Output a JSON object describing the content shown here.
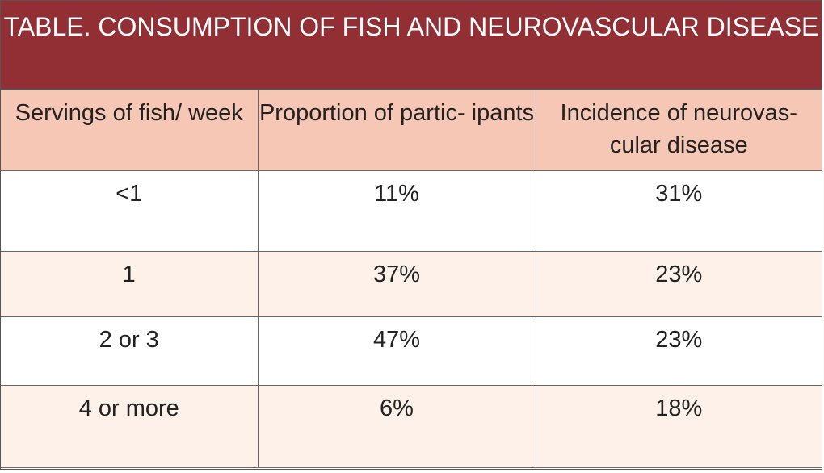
{
  "title": "TABLE. CONSUMPTION OF FISH AND NEUROVASCULAR DISEASE",
  "columns": [
    "Servings of fish/ week",
    "Proportion of partic- ipants",
    "Incidence of neurovas- cular disease"
  ],
  "rows": [
    [
      "<1",
      "11%",
      "31%"
    ],
    [
      "1",
      "37%",
      "23%"
    ],
    [
      "2 or 3",
      "47%",
      "23%"
    ],
    [
      "4 or more",
      "6%",
      "18%"
    ]
  ],
  "colors": {
    "title_bg": "#912f34",
    "header_bg": "#f7c7b5",
    "alt_row_bg": "#fdf1e9"
  }
}
